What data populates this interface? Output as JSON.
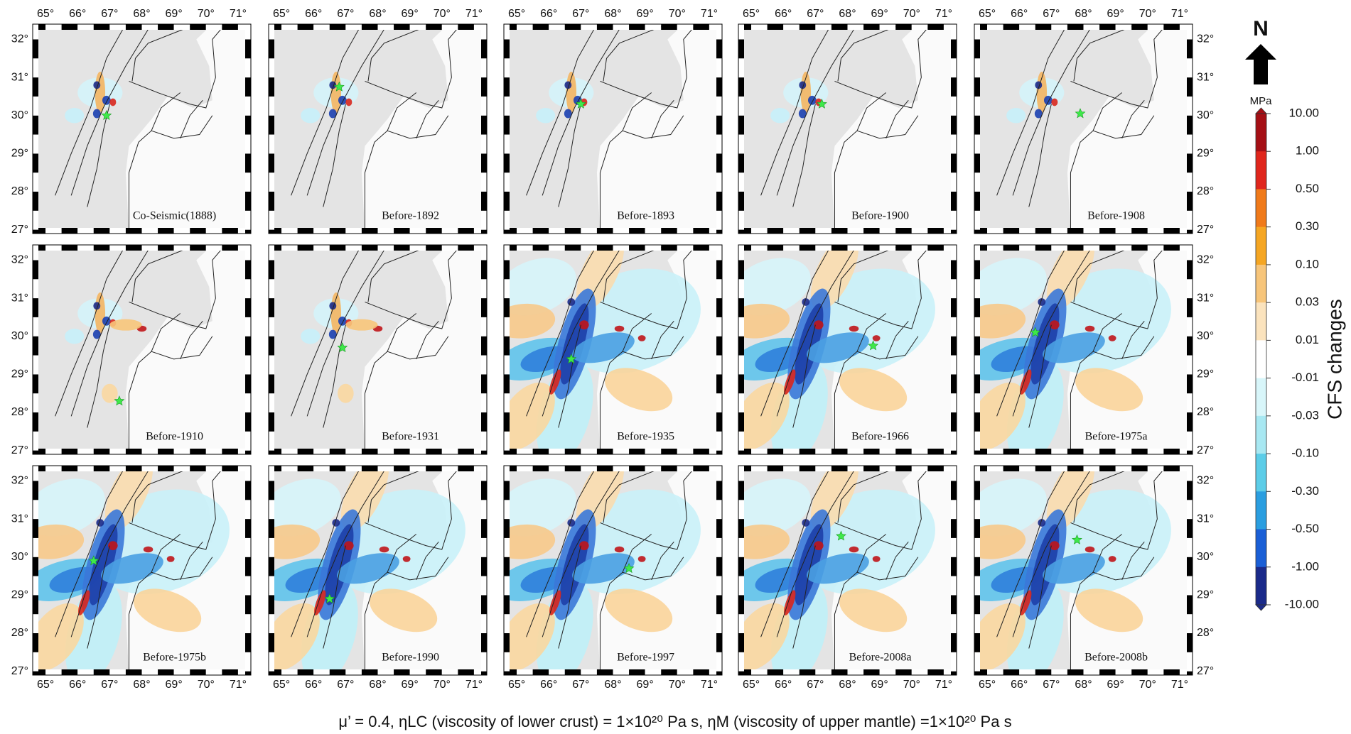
{
  "panels": [
    {
      "title": "Co-Seismic(1888)",
      "star": {
        "lon": 66.9,
        "lat": 30.0
      }
    },
    {
      "title": "Before-1892",
      "star": {
        "lon": 66.8,
        "lat": 30.75
      }
    },
    {
      "title": "Before-1893",
      "star": {
        "lon": 67.0,
        "lat": 30.3
      }
    },
    {
      "title": "Before-1900",
      "star": {
        "lon": 67.2,
        "lat": 30.3
      }
    },
    {
      "title": "Before-1908",
      "star": {
        "lon": 67.9,
        "lat": 30.05
      }
    },
    {
      "title": "Before-1910",
      "star": {
        "lon": 67.3,
        "lat": 28.3
      }
    },
    {
      "title": "Before-1931",
      "star": {
        "lon": 66.9,
        "lat": 29.7
      }
    },
    {
      "title": "Before-1935",
      "star": {
        "lon": 66.7,
        "lat": 29.4
      }
    },
    {
      "title": "Before-1966",
      "star": {
        "lon": 68.8,
        "lat": 29.75
      }
    },
    {
      "title": "Before-1975a",
      "star": {
        "lon": 66.5,
        "lat": 30.1
      }
    },
    {
      "title": "Before-1975b",
      "star": {
        "lon": 66.5,
        "lat": 29.9
      }
    },
    {
      "title": "Before-1990",
      "star": {
        "lon": 66.5,
        "lat": 28.9
      }
    },
    {
      "title": "Before-1997",
      "star": {
        "lon": 68.5,
        "lat": 29.7
      }
    },
    {
      "title": "Before-2008a",
      "star": {
        "lon": 67.8,
        "lat": 30.55
      }
    },
    {
      "title": "Before-2008b",
      "star": {
        "lon": 67.8,
        "lat": 30.45
      }
    }
  ],
  "map": {
    "xlim": [
      64.6,
      71.4
    ],
    "ylim": [
      26.9,
      32.4
    ],
    "xticks": [
      {
        "value": 65,
        "label": "65°"
      },
      {
        "value": 66,
        "label": "66°"
      },
      {
        "value": 67,
        "label": "67°"
      },
      {
        "value": 68,
        "label": "68°"
      },
      {
        "value": 69,
        "label": "69°"
      },
      {
        "value": 70,
        "label": "70°"
      },
      {
        "value": 71,
        "label": "71°"
      }
    ],
    "yticks": [
      {
        "value": 27,
        "label": "27°"
      },
      {
        "value": 28,
        "label": "28°"
      },
      {
        "value": 29,
        "label": "29°"
      },
      {
        "value": 30,
        "label": "30°"
      },
      {
        "value": 31,
        "label": "31°"
      },
      {
        "value": 32,
        "label": "32°"
      }
    ],
    "star_color": "#3ee84a"
  },
  "colorbar": {
    "unit": "MPa",
    "label": "CFS changes",
    "levels": [
      {
        "value": 10,
        "label": "10.00"
      },
      {
        "value": 1,
        "label": "1.00"
      },
      {
        "value": 0.5,
        "label": "0.50"
      },
      {
        "value": 0.3,
        "label": "0.30"
      },
      {
        "value": 0.1,
        "label": "0.10"
      },
      {
        "value": 0.03,
        "label": "0.03"
      },
      {
        "value": 0.01,
        "label": "0.01"
      },
      {
        "value": -0.01,
        "label": "-0.01"
      },
      {
        "value": -0.03,
        "label": "-0.03"
      },
      {
        "value": -0.1,
        "label": "-0.10"
      },
      {
        "value": -0.3,
        "label": "-0.30"
      },
      {
        "value": -0.5,
        "label": "-0.50"
      },
      {
        "value": -1,
        "label": "-1.00"
      },
      {
        "value": -10,
        "label": "-10.00"
      }
    ],
    "colors": [
      "#a50f15",
      "#e0261c",
      "#f07a1a",
      "#f5a623",
      "#f7c57a",
      "#fbe3bd",
      "#ffffff",
      "#d8f6fa",
      "#a8e8f2",
      "#5ccde8",
      "#2a9ee0",
      "#1a5fd6",
      "#1a2a8a"
    ]
  },
  "north": "N",
  "caption": "μ’ = 0.4, ηLC (viscosity of lower crust) = 1×10²⁰ Pa s, ηM (viscosity of upper mantle) =1×10²⁰ Pa s"
}
